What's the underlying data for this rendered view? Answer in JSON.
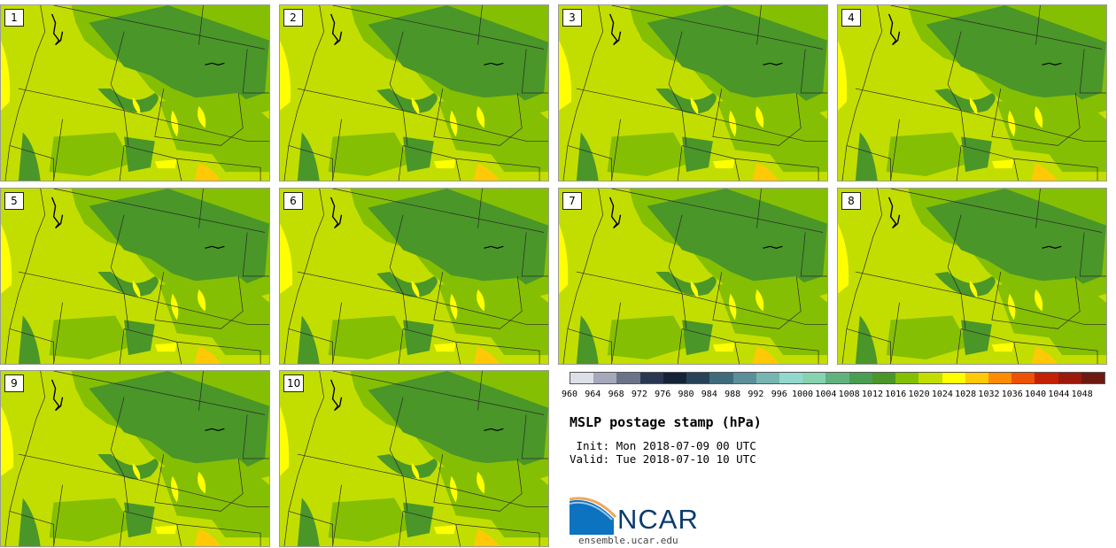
{
  "panels": [
    {
      "label": "1"
    },
    {
      "label": "2"
    },
    {
      "label": "3"
    },
    {
      "label": "4"
    },
    {
      "label": "5"
    },
    {
      "label": "6"
    },
    {
      "label": "7"
    },
    {
      "label": "8"
    },
    {
      "label": "9"
    },
    {
      "label": "10"
    }
  ],
  "colorbar": {
    "colors": [
      "#dcdfe6",
      "#a6a9bb",
      "#6b7389",
      "#2a3752",
      "#152238",
      "#26435a",
      "#3f6b7d",
      "#5a9099",
      "#76b5b2",
      "#93d8cc",
      "#86d3b2",
      "#62b27e",
      "#4a9e52",
      "#4a9628",
      "#85bf04",
      "#c2de00",
      "#ffff00",
      "#ffc907",
      "#ff8c00",
      "#ef5107",
      "#c42003",
      "#9c1a0c",
      "#6e1a10"
    ],
    "ticks": [
      "960",
      "964",
      "968",
      "972",
      "976",
      "980",
      "984",
      "988",
      "992",
      "996",
      "1000",
      "1004",
      "1008",
      "1012",
      "1016",
      "1020",
      "1024",
      "1028",
      "1032",
      "1036",
      "1040",
      "1044",
      "1048"
    ]
  },
  "title": "MSLP postage stamp (hPa)",
  "init": " Init: Mon 2018-07-09 00 UTC",
  "valid": "Valid: Tue 2018-07-10 10 UTC",
  "logo": {
    "text": "NCAR",
    "url_text": "ensemble.ucar.edu"
  },
  "map_colors": {
    "low": "#85bf04",
    "mid": "#c2de00",
    "high": "#4a9628",
    "yellow": "#ffff00",
    "orange": "#ffc907"
  }
}
